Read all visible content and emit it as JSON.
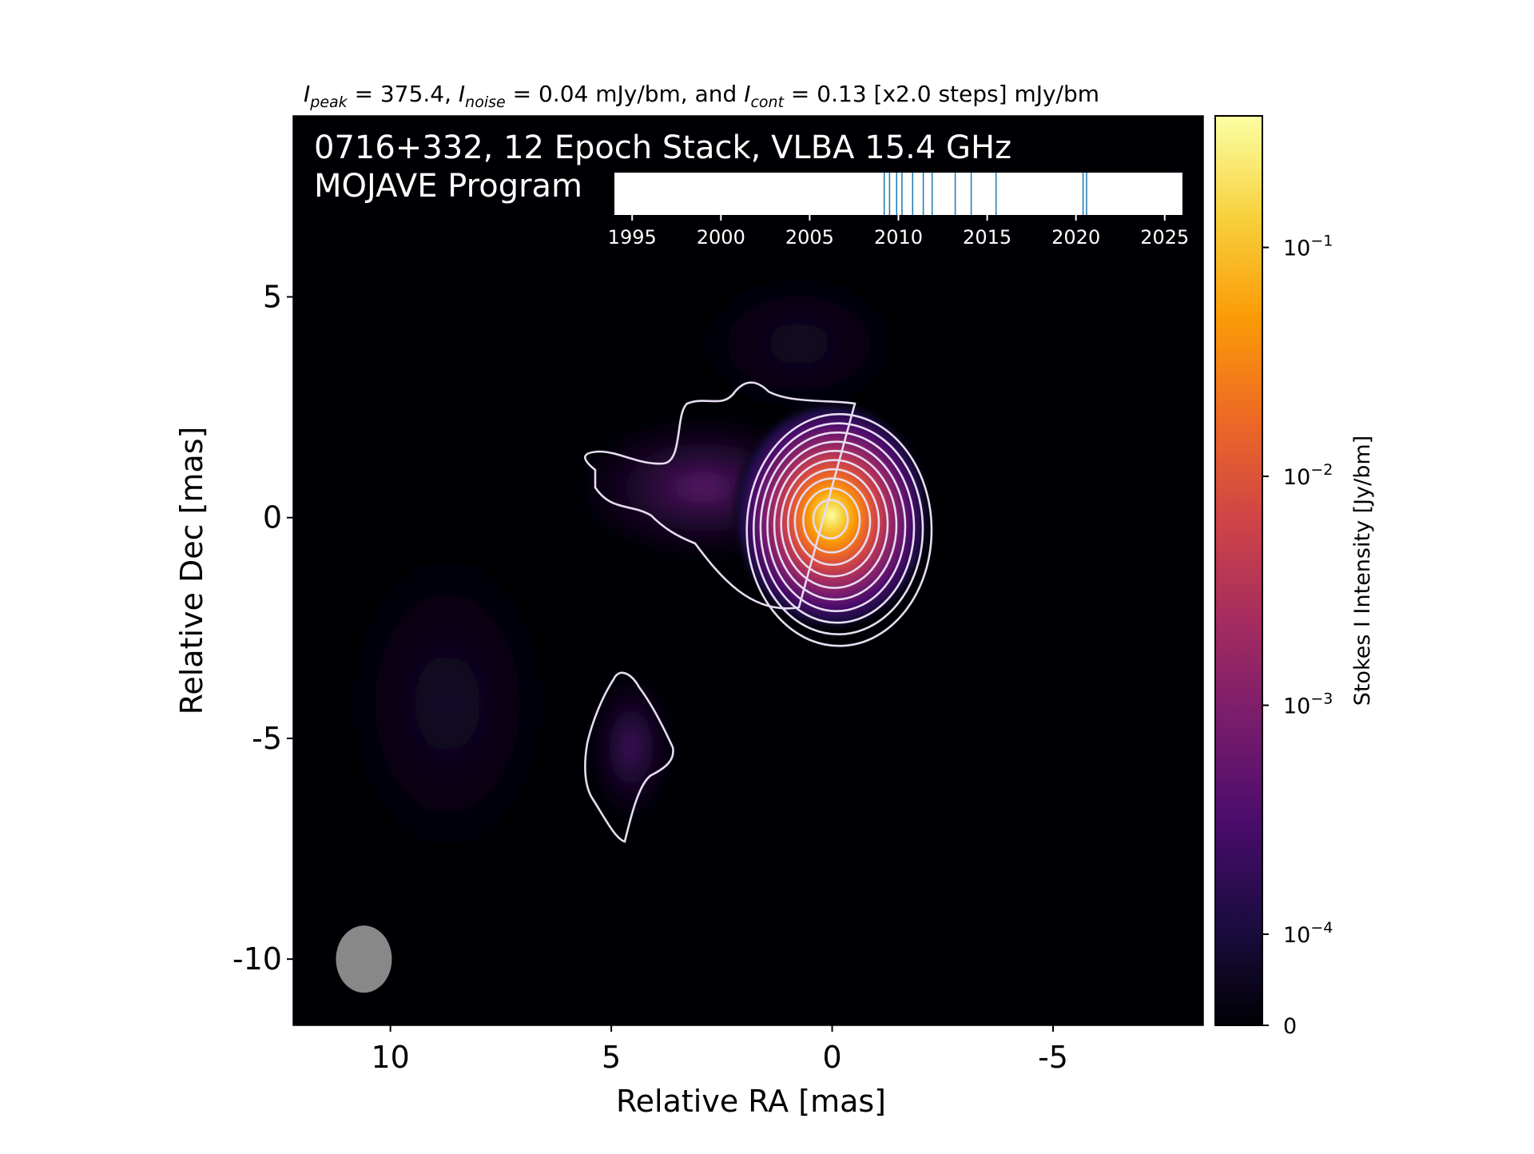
{
  "figure": {
    "header": {
      "prefix_peak": "I",
      "sub_peak": "peak",
      "peak_value": " = 375.4, ",
      "prefix_noise": "I",
      "sub_noise": "noise",
      "noise_value": " = 0.04 mJy/bm, and ",
      "prefix_cont": "I",
      "sub_cont": "cont",
      "cont_value": " = 0.13 [x2.0 steps] mJy/bm"
    },
    "title_line1": "0716+332, 12 Epoch Stack, VLBA 15.4 GHz",
    "title_line2": "MOJAVE Program",
    "colorbar_label": "Stokes I Intensity [Jy/bm]",
    "colorbar_ticks": [
      {
        "base": "10",
        "exp": "−1",
        "value": 0.1
      },
      {
        "base": "10",
        "exp": "−2",
        "value": 0.01
      },
      {
        "base": "10",
        "exp": "−3",
        "value": 0.001
      },
      {
        "base": "10",
        "exp": "−4",
        "value": 0.0001
      },
      {
        "base": "0",
        "exp": "",
        "value": 0
      }
    ],
    "colors": {
      "background": "#000004",
      "contour": "#e6dcf0",
      "beam": "#888888",
      "epoch_line": "#1f77b4",
      "cmap": [
        "#000004",
        "#1b0c41",
        "#4a0c6b",
        "#781c6d",
        "#a52c60",
        "#cf4446",
        "#ed6925",
        "#fb9b06",
        "#f7d13d",
        "#fcffa4"
      ]
    }
  },
  "chart_data": {
    "type": "heatmap",
    "title": "0716+332, 12 Epoch Stack, VLBA 15.4 GHz",
    "xlabel": "Relative RA [mas]",
    "ylabel": "Relative Dec [mas]",
    "xlim": [
      12.2,
      -8.4
    ],
    "ylim": [
      -11.5,
      9.1
    ],
    "xticks": [
      10,
      5,
      0,
      -5
    ],
    "yticks": [
      5,
      0,
      -5,
      -10
    ],
    "xtick_labels": [
      "10",
      "5",
      "0",
      "-5"
    ],
    "ytick_labels": [
      "5",
      "0",
      "-5",
      "-10"
    ],
    "colorbar": {
      "label": "Stokes I Intensity [Jy/bm]",
      "scale": "log",
      "min": 0,
      "max": 0.3754
    },
    "peak_mJy_per_beam": 375.4,
    "noise_mJy_per_beam": 0.04,
    "lowest_contour_mJy_per_beam": 0.13,
    "contour_step_factor": 2.0,
    "core_position": [
      0,
      0
    ],
    "beam": {
      "ra": 10.6,
      "dec": -10.0,
      "major_mas": 1.5,
      "minor_mas": 1.25,
      "pa_deg": 0
    },
    "epoch_timeline": {
      "xlim": [
        1994,
        2026
      ],
      "tick_values": [
        1995,
        2000,
        2005,
        2010,
        2015,
        2020,
        2025
      ],
      "tick_labels": [
        "1995",
        "2000",
        "2005",
        "2010",
        "2015",
        "2020",
        "2025"
      ],
      "epochs": [
        2009.2,
        2009.5,
        2009.9,
        2010.2,
        2010.8,
        2011.4,
        2011.9,
        2013.2,
        2014.1,
        2015.5,
        2020.4,
        2020.6
      ]
    }
  }
}
